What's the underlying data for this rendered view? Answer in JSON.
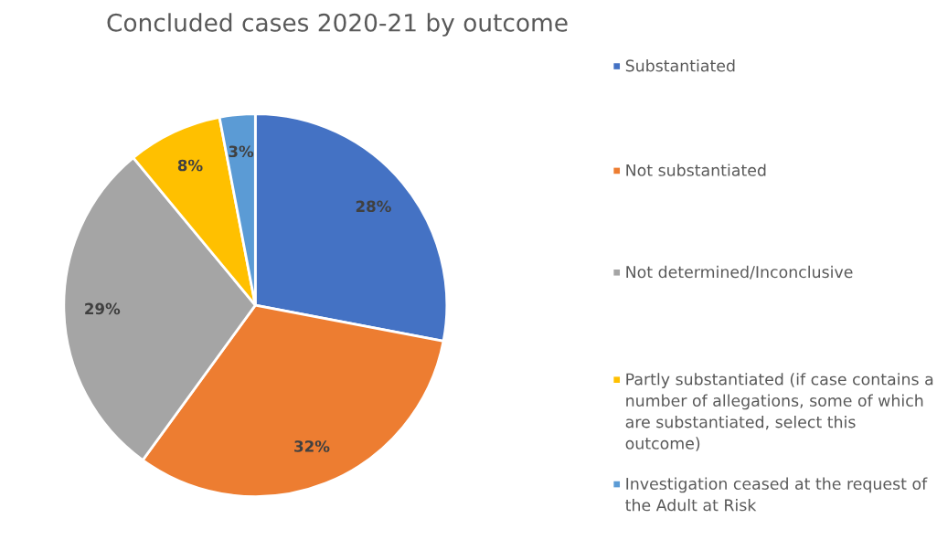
{
  "chart_data": {
    "type": "pie",
    "title": "Concluded cases 2020-21 by outcome",
    "categories": [
      "Substantiated",
      "Not substantiated",
      "Not determined/Inconclusive",
      "Partly substantiated (if case contains a number of allegations, some of which are substantiated, select this outcome)",
      "Investigation ceased at the request of the Adult at Risk"
    ],
    "values": [
      28,
      32,
      29,
      8,
      3
    ],
    "colors": [
      "#4472c4",
      "#ed7d31",
      "#a5a5a5",
      "#ffc000",
      "#5b9bd5"
    ],
    "value_labels": [
      "28%",
      "32%",
      "29%",
      "8%",
      "3%"
    ],
    "legend": "right"
  }
}
